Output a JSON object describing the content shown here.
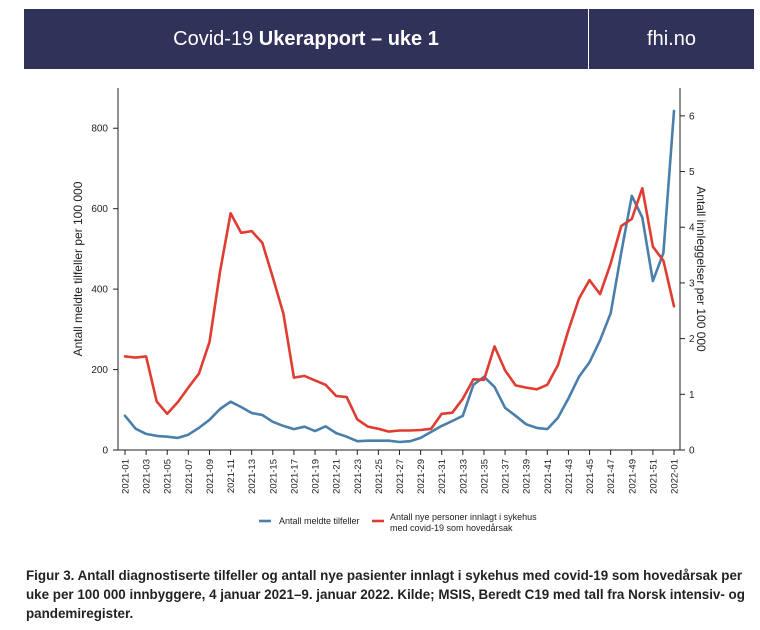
{
  "header": {
    "title_prefix": "Covid-19 ",
    "title_bold": "Ukerapport – uke 1",
    "site": "fhi.no"
  },
  "colors": {
    "banner_bg": "#31325a",
    "series_cases": "#4a7fab",
    "series_hosp": "#e03c31"
  },
  "chart_data": {
    "type": "line",
    "x": [
      "2021-01",
      "2021-02",
      "2021-03",
      "2021-04",
      "2021-05",
      "2021-06",
      "2021-07",
      "2021-08",
      "2021-09",
      "2021-10",
      "2021-11",
      "2021-12",
      "2021-13",
      "2021-14",
      "2021-15",
      "2021-16",
      "2021-17",
      "2021-18",
      "2021-19",
      "2021-20",
      "2021-21",
      "2021-22",
      "2021-23",
      "2021-24",
      "2021-25",
      "2021-26",
      "2021-27",
      "2021-28",
      "2021-29",
      "2021-30",
      "2021-31",
      "2021-32",
      "2021-33",
      "2021-34",
      "2021-35",
      "2021-36",
      "2021-37",
      "2021-38",
      "2021-39",
      "2021-40",
      "2021-41",
      "2021-42",
      "2021-43",
      "2021-44",
      "2021-45",
      "2021-46",
      "2021-47",
      "2021-48",
      "2021-49",
      "2021-50",
      "2021-51",
      "2021-52",
      "2022-01"
    ],
    "x_tick_labels": [
      "2021-01",
      "2021-03",
      "2021-05",
      "2021-07",
      "2021-09",
      "2021-11",
      "2021-13",
      "2021-15",
      "2021-17",
      "2021-19",
      "2021-21",
      "2021-23",
      "2021-25",
      "2021-27",
      "2021-29",
      "2021-31",
      "2021-33",
      "2021-35",
      "2021-37",
      "2021-39",
      "2021-41",
      "2021-43",
      "2021-45",
      "2021-47",
      "2021-49",
      "2021-51",
      "2022-01"
    ],
    "series": [
      {
        "name": "Antall meldte tilfeller",
        "axis": "left",
        "values": [
          85,
          53,
          40,
          35,
          33,
          30,
          38,
          55,
          75,
          102,
          120,
          107,
          92,
          87,
          70,
          60,
          52,
          58,
          47,
          59,
          42,
          33,
          22,
          23,
          23,
          23,
          20,
          22,
          30,
          45,
          60,
          72,
          85,
          162,
          182,
          157,
          105,
          85,
          64,
          55,
          52,
          80,
          128,
          182,
          218,
          273,
          340,
          490,
          632,
          578,
          420,
          490,
          843
        ]
      },
      {
        "name": "Antall nye personer innlagt i sykehus med covid-19 som hovedårsak",
        "axis": "right",
        "values": [
          1.68,
          1.66,
          1.68,
          0.87,
          0.65,
          0.86,
          1.12,
          1.37,
          1.94,
          3.2,
          4.25,
          3.9,
          3.93,
          3.72,
          3.1,
          2.45,
          1.3,
          1.33,
          1.25,
          1.17,
          0.97,
          0.95,
          0.55,
          0.42,
          0.38,
          0.33,
          0.35,
          0.35,
          0.36,
          0.38,
          0.65,
          0.67,
          0.92,
          1.27,
          1.26,
          1.86,
          1.43,
          1.16,
          1.12,
          1.09,
          1.17,
          1.52,
          2.15,
          2.72,
          3.05,
          2.8,
          3.35,
          4.02,
          4.15,
          4.7,
          3.65,
          3.4,
          2.58
        ]
      }
    ],
    "ylabel": "Antall meldte tilfeller per 100 000",
    "y2label": "Antall innleggelser per 100 000",
    "ylim": [
      0,
      900
    ],
    "y_ticks": [
      0,
      200,
      400,
      600,
      800
    ],
    "y2lim": [
      0,
      6.5
    ],
    "y2_ticks": [
      0,
      1,
      2,
      3,
      4,
      5,
      6
    ],
    "grid": false,
    "legend_position": "bottom"
  },
  "legend": {
    "cases_label": "Antall meldte tilfeller",
    "hosp_label_line1": "Antall nye personer innlagt i sykehus",
    "hosp_label_line2": "med covid-19 som hovedårsak"
  },
  "caption": "Figur 3. Antall diagnostiserte tilfeller og antall nye pasienter innlagt i sykehus med covid-19 som hovedårsak per uke per 100 000 innbyggere, 4 januar 2021–9. januar 2022. Kilde; MSIS, Beredt C19 med tall fra Norsk intensiv- og pandemiregister."
}
